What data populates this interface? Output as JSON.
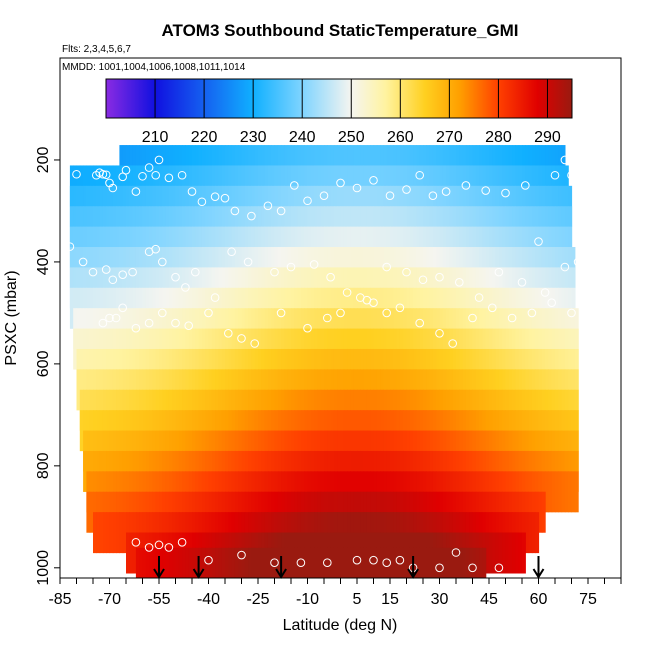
{
  "chart_data": {
    "type": "heatmap",
    "title": "ATOM3 Southbound StaticTemperature_GMI",
    "subtitle_flights": "Flts: 2,3,4,5,6,7",
    "subtitle_dates": "MMDD: 1001,1004,1006,1008,1011,1014",
    "xlabel": "Latitude (deg N)",
    "ylabel": "PSXC (mbar)",
    "xlim": [
      -85,
      85
    ],
    "ylim": [
      1020,
      0
    ],
    "x_ticks": [
      -85,
      -70,
      -55,
      -40,
      -25,
      -10,
      5,
      15,
      30,
      45,
      60,
      75
    ],
    "x_tick_labels": [
      "-85",
      "-70",
      "-55",
      "-40",
      "-25",
      "-10",
      "5",
      "15",
      "30",
      "45",
      "60",
      "75"
    ],
    "y_ticks": [
      200,
      400,
      600,
      800,
      1000
    ],
    "y_tick_labels": [
      "200",
      "400",
      "600",
      "800",
      "1000"
    ],
    "colorbar": {
      "range": [
        200,
        295
      ],
      "ticks": [
        210,
        220,
        230,
        240,
        250,
        260,
        270,
        280,
        290
      ],
      "tick_labels": [
        "210",
        "220",
        "230",
        "240",
        "250",
        "260",
        "270",
        "280",
        "290"
      ],
      "stops": [
        {
          "value": 200,
          "color": "#8a2be2"
        },
        {
          "value": 210,
          "color": "#1010e0"
        },
        {
          "value": 220,
          "color": "#1560f0"
        },
        {
          "value": 230,
          "color": "#10b0ff"
        },
        {
          "value": 240,
          "color": "#7fd4ff"
        },
        {
          "value": 250,
          "color": "#f5f5f0"
        },
        {
          "value": 257,
          "color": "#fff3a0"
        },
        {
          "value": 265,
          "color": "#ffd020"
        },
        {
          "value": 272,
          "color": "#ffa000"
        },
        {
          "value": 280,
          "color": "#ff4000"
        },
        {
          "value": 288,
          "color": "#e00000"
        },
        {
          "value": 295,
          "color": "#9a1a10"
        }
      ]
    },
    "rows": [
      {
        "p": 210,
        "lat_min": -67,
        "lat_max": 68
      },
      {
        "p": 250,
        "lat_min": -82,
        "lat_max": 69
      },
      {
        "p": 290,
        "lat_min": -82,
        "lat_max": 70
      },
      {
        "p": 330,
        "lat_min": -82,
        "lat_max": 70
      },
      {
        "p": 370,
        "lat_min": -82,
        "lat_max": 70
      },
      {
        "p": 410,
        "lat_min": -82,
        "lat_max": 71
      },
      {
        "p": 450,
        "lat_min": -82,
        "lat_max": 71
      },
      {
        "p": 490,
        "lat_min": -82,
        "lat_max": 71
      },
      {
        "p": 530,
        "lat_min": -81,
        "lat_max": 72
      },
      {
        "p": 570,
        "lat_min": -81,
        "lat_max": 72
      },
      {
        "p": 610,
        "lat_min": -80,
        "lat_max": 72
      },
      {
        "p": 650,
        "lat_min": -80,
        "lat_max": 72
      },
      {
        "p": 690,
        "lat_min": -79,
        "lat_max": 72
      },
      {
        "p": 730,
        "lat_min": -79,
        "lat_max": 72
      },
      {
        "p": 770,
        "lat_min": -78,
        "lat_max": 72
      },
      {
        "p": 810,
        "lat_min": -78,
        "lat_max": 72
      },
      {
        "p": 850,
        "lat_min": -77,
        "lat_max": 72
      },
      {
        "p": 890,
        "lat_min": -77,
        "lat_max": 62
      },
      {
        "p": 930,
        "lat_min": -75,
        "lat_max": 60
      },
      {
        "p": 970,
        "lat_min": -65,
        "lat_max": 56
      },
      {
        "p": 1000,
        "lat_min": -62,
        "lat_max": 44
      }
    ],
    "arrows_lat": [
      -55,
      -43,
      -18,
      22,
      60
    ],
    "points": [
      [
        -80,
        228
      ],
      [
        -74,
        230
      ],
      [
        -73,
        225
      ],
      [
        -72,
        228
      ],
      [
        -71,
        229
      ],
      [
        -70,
        245
      ],
      [
        -69,
        255
      ],
      [
        -66,
        233
      ],
      [
        -65,
        220
      ],
      [
        -62,
        262
      ],
      [
        -60,
        232
      ],
      [
        -58,
        215
      ],
      [
        -56,
        230
      ],
      [
        -55,
        200
      ],
      [
        -52,
        235
      ],
      [
        -48,
        230
      ],
      [
        -45,
        262
      ],
      [
        -42,
        282
      ],
      [
        -38,
        272
      ],
      [
        -35,
        275
      ],
      [
        -32,
        300
      ],
      [
        -27,
        310
      ],
      [
        -22,
        290
      ],
      [
        -18,
        300
      ],
      [
        -14,
        250
      ],
      [
        -10,
        280
      ],
      [
        -5,
        270
      ],
      [
        0,
        245
      ],
      [
        5,
        255
      ],
      [
        10,
        240
      ],
      [
        15,
        270
      ],
      [
        20,
        258
      ],
      [
        24,
        230
      ],
      [
        28,
        270
      ],
      [
        32,
        262
      ],
      [
        38,
        250
      ],
      [
        44,
        260
      ],
      [
        50,
        265
      ],
      [
        56,
        250
      ],
      [
        60,
        360
      ],
      [
        65,
        230
      ],
      [
        68,
        200
      ],
      [
        70,
        230
      ],
      [
        -82,
        370
      ],
      [
        -78,
        400
      ],
      [
        -75,
        420
      ],
      [
        -71,
        415
      ],
      [
        -69,
        435
      ],
      [
        -66,
        425
      ],
      [
        -63,
        420
      ],
      [
        -58,
        380
      ],
      [
        -56,
        375
      ],
      [
        -54,
        400
      ],
      [
        -50,
        430
      ],
      [
        -47,
        450
      ],
      [
        -44,
        420
      ],
      [
        -38,
        470
      ],
      [
        -33,
        380
      ],
      [
        -28,
        400
      ],
      [
        -20,
        420
      ],
      [
        -15,
        410
      ],
      [
        -8,
        405
      ],
      [
        -3,
        430
      ],
      [
        2,
        460
      ],
      [
        8,
        475
      ],
      [
        14,
        410
      ],
      [
        20,
        420
      ],
      [
        25,
        435
      ],
      [
        30,
        430
      ],
      [
        36,
        440
      ],
      [
        42,
        470
      ],
      [
        48,
        420
      ],
      [
        55,
        440
      ],
      [
        62,
        460
      ],
      [
        68,
        410
      ],
      [
        72,
        400
      ],
      [
        -72,
        520
      ],
      [
        -70,
        510
      ],
      [
        -68,
        510
      ],
      [
        -66,
        490
      ],
      [
        -62,
        530
      ],
      [
        -58,
        520
      ],
      [
        -54,
        500
      ],
      [
        -50,
        520
      ],
      [
        -46,
        525
      ],
      [
        -40,
        500
      ],
      [
        -34,
        540
      ],
      [
        -30,
        550
      ],
      [
        -26,
        560
      ],
      [
        -18,
        500
      ],
      [
        -10,
        530
      ],
      [
        -4,
        510
      ],
      [
        0,
        500
      ],
      [
        6,
        470
      ],
      [
        10,
        480
      ],
      [
        14,
        500
      ],
      [
        18,
        490
      ],
      [
        24,
        520
      ],
      [
        30,
        540
      ],
      [
        34,
        560
      ],
      [
        40,
        510
      ],
      [
        46,
        490
      ],
      [
        52,
        510
      ],
      [
        58,
        500
      ],
      [
        64,
        480
      ],
      [
        70,
        500
      ],
      [
        -62,
        950
      ],
      [
        -58,
        960
      ],
      [
        -55,
        955
      ],
      [
        -52,
        960
      ],
      [
        -48,
        950
      ],
      [
        -40,
        985
      ],
      [
        -30,
        975
      ],
      [
        -20,
        990
      ],
      [
        -12,
        990
      ],
      [
        -4,
        990
      ],
      [
        5,
        985
      ],
      [
        10,
        985
      ],
      [
        14,
        990
      ],
      [
        18,
        985
      ],
      [
        22,
        1000
      ],
      [
        30,
        1000
      ],
      [
        35,
        970
      ],
      [
        40,
        1000
      ],
      [
        48,
        1000
      ]
    ]
  }
}
